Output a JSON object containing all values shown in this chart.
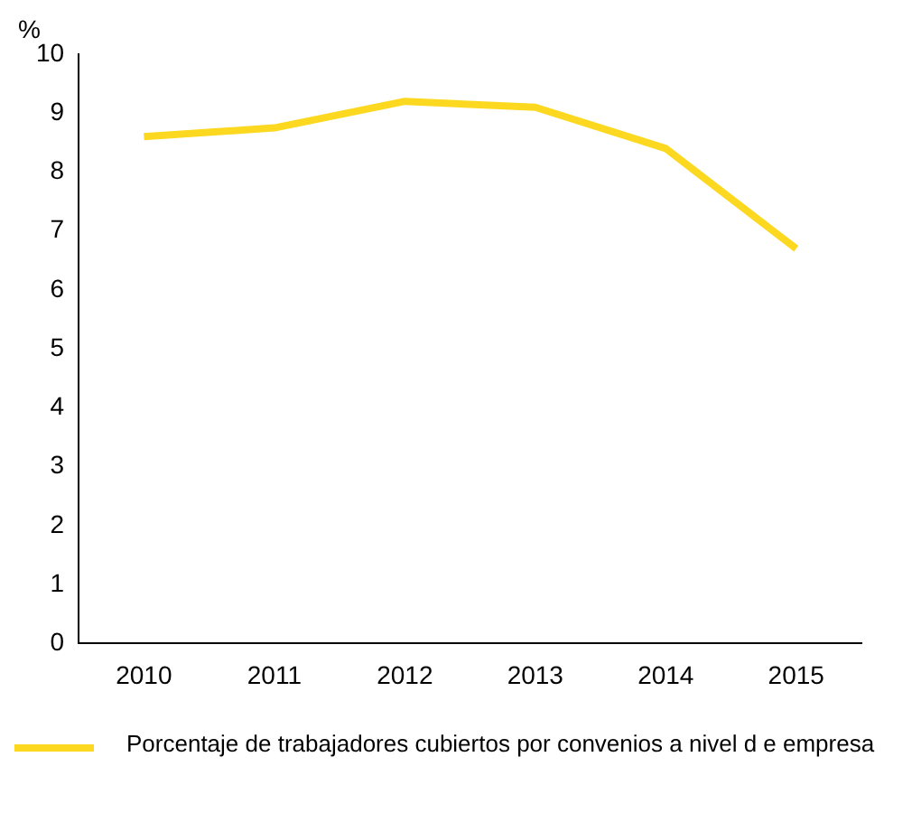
{
  "chart_data": {
    "type": "line",
    "ylabel": "%",
    "categories": [
      "2010",
      "2011",
      "2012",
      "2013",
      "2014",
      "2015"
    ],
    "series": [
      {
        "name": "Porcentaje de trabajadores cubiertos por convenios a nivel d e empresa",
        "color": "#fcd920",
        "values": [
          8.6,
          8.75,
          9.2,
          9.1,
          8.4,
          6.7
        ]
      }
    ],
    "ylim": [
      0,
      10
    ],
    "yticks": [
      0,
      1,
      2,
      3,
      4,
      5,
      6,
      7,
      8,
      9,
      10
    ],
    "grid": false,
    "legend": "bottom",
    "marker": "none",
    "line_style": "solid"
  }
}
